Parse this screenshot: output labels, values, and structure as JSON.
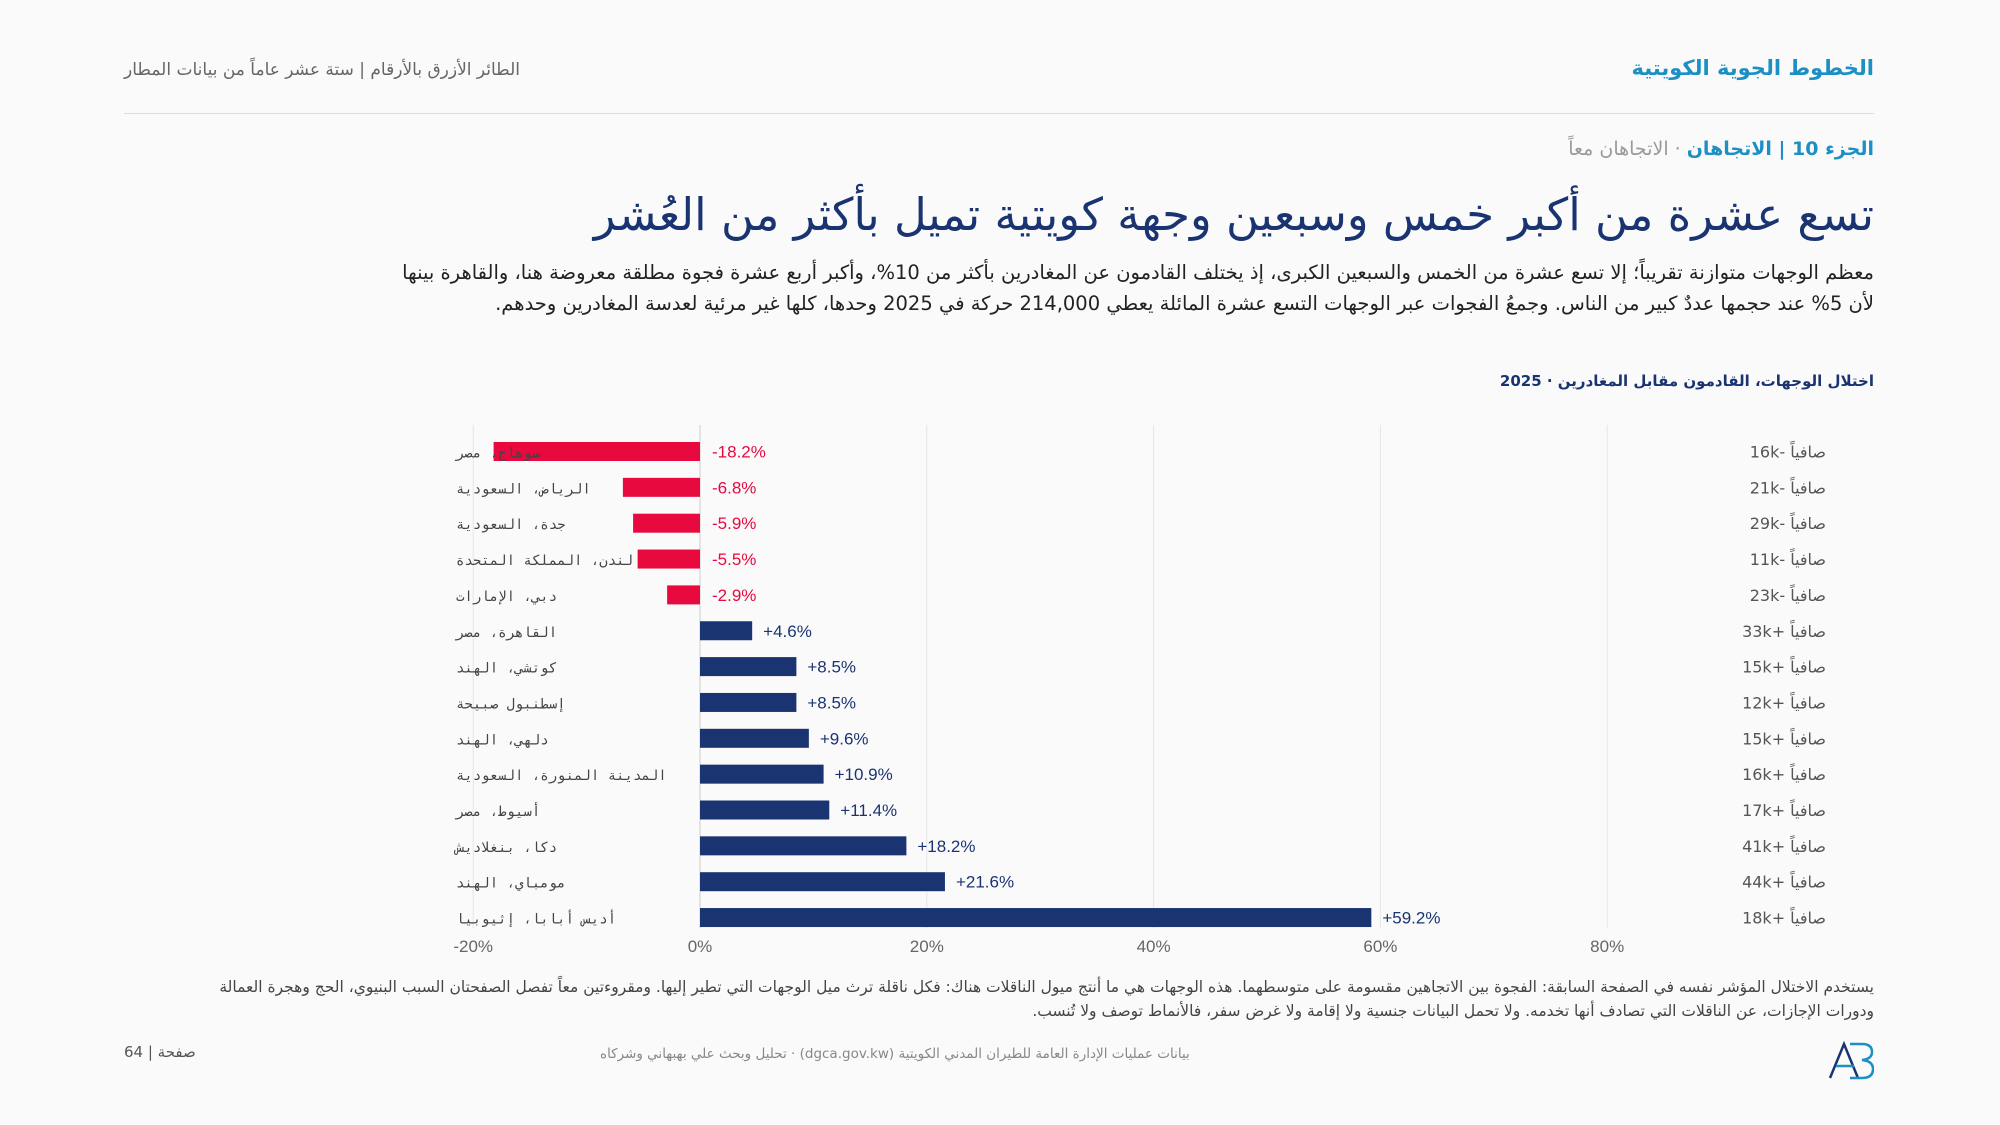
{
  "header": {
    "brand": "الخطوط الجوية الكويتية",
    "subtitle": "الطائر الأزرق بالأرقام | ستة عشر عاماً من بيانات المطار"
  },
  "section": {
    "part": "الجزء 10 | الاتجاهان",
    "separator": " · ",
    "theme": "الاتجاهان معاً"
  },
  "headline": "تسع عشرة من أكبر خمس وسبعين وجهة كويتية تميل بأكثر من العُشر",
  "lede": "معظم الوجهات متوازنة تقريباً؛ إلا تسع عشرة من الخمس والسبعين الكبرى، إذ يختلف القادمون عن المغادرين بأكثر من 10%، وأكبر أربع عشرة فجوة مطلقة معروضة هنا، والقاهرة بينها لأن 5% عند حجمها عددٌ كبير من الناس. وجمعُ الفجوات عبر الوجهات التسع عشرة المائلة يعطي 214,000 حركة في 2025 وحدها، كلها غير مرئية لعدسة المغادرين وحدهم.",
  "chart_title": "اختلال الوجهات، القادمون مقابل المغادرين · 2025",
  "chart_data": {
    "type": "bar",
    "orientation": "horizontal",
    "categories": [
      "سوهاج، مصر",
      "الرياض، السعودية",
      "جدة، السعودية",
      "لندن، المملكة المتحدة",
      "دبي، الإمارات",
      "القاهرة، مصر",
      "كوتشي، الهند",
      "إسطنبول صبيحة",
      "دلهي، الهند",
      "المدينة المنورة، السعودية",
      "أسيوط، مصر",
      "دكا، بنغلاديش",
      "مومباي، الهند",
      "أديس أبابا، إثيوبيا"
    ],
    "values": [
      -18.2,
      -6.8,
      -5.9,
      -5.5,
      -2.9,
      4.6,
      8.5,
      8.5,
      9.6,
      10.9,
      11.4,
      18.2,
      21.6,
      59.2
    ],
    "value_labels": [
      "-18.2%",
      "-6.8%",
      "-5.9%",
      "-5.5%",
      "-2.9%",
      "+4.6%",
      "+8.5%",
      "+8.5%",
      "+9.6%",
      "+10.9%",
      "+11.4%",
      "+18.2%",
      "+21.6%",
      "+59.2%"
    ],
    "net_labels": [
      "صافياً -16k",
      "صافياً -21k",
      "صافياً -29k",
      "صافياً -11k",
      "صافياً -23k",
      "صافياً +33k",
      "صافياً +15k",
      "صافياً +12k",
      "صافياً +15k",
      "صافياً +16k",
      "صافياً +17k",
      "صافياً +41k",
      "صافياً +44k",
      "صافياً +18k"
    ],
    "xticks": [
      -20,
      0,
      20,
      40,
      60,
      80
    ],
    "xtick_labels": [
      "-20%",
      "0%",
      "20%",
      "40%",
      "60%",
      "80%"
    ],
    "xlim": [
      -20,
      80
    ],
    "grid": true,
    "colors": {
      "negative": "#e8093e",
      "positive": "#1a3472"
    }
  },
  "footnote": "يستخدم الاختلال المؤشر نفسه في الصفحة السابقة: الفجوة بين الاتجاهين مقسومة على متوسطهما. هذه الوجهات هي ما أنتج ميول الناقلات هناك: فكل ناقلة ترث ميل الوجهات التي تطير إليها. ومقروءتين معاً تفصل الصفحتان السبب البنيوي، الحج وهجرة العمالة ودورات الإجازات، عن الناقلات التي تصادف أنها تخدمه. ولا تحمل البيانات جنسية ولا إقامة ولا غرض سفر، فالأنماط توصف ولا تُنسب.",
  "source": "بيانات عمليات الإدارة العامة للطيران المدني الكويتية (dgca.gov.kw) · تحليل وبحث علي بهبهاني وشركاه",
  "page_number": "صفحة | 64",
  "colors": {
    "brand": "#1c8fc4",
    "headline": "#1a3472"
  }
}
